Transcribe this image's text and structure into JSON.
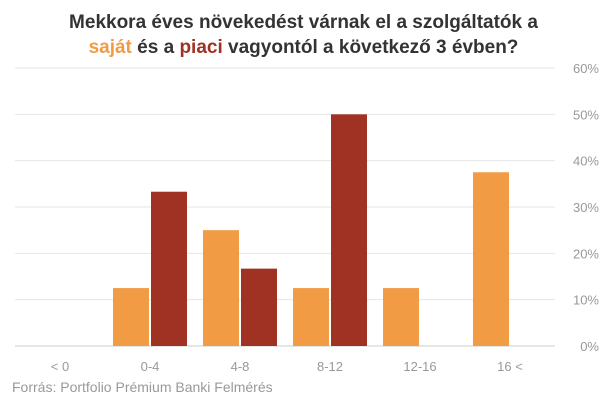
{
  "chart_data": {
    "type": "bar",
    "title_parts": {
      "line1": "Mekkora éves növekedést várnak el a szolgáltatók a",
      "series1_word": "saját",
      "mid": " és a ",
      "series2_word": "piaci",
      "end": " vagyontól a következő 3 évben?"
    },
    "categories": [
      "< 0",
      "0-4",
      "4-8",
      "8-12",
      "12-16",
      "16 <"
    ],
    "series": [
      {
        "name": "saját",
        "color": "#f19c45",
        "values": [
          0,
          12.5,
          25,
          12.5,
          12.5,
          37.5
        ]
      },
      {
        "name": "piaci",
        "color": "#a03224",
        "values": [
          0,
          33.3,
          16.7,
          50,
          0,
          0
        ]
      }
    ],
    "ylim": [
      0,
      60
    ],
    "yticks": [
      "0%",
      "10%",
      "20%",
      "30%",
      "40%",
      "50%",
      "60%"
    ],
    "grid": true,
    "source": "Forrás: Portfolio Prémium Banki Felmérés"
  }
}
